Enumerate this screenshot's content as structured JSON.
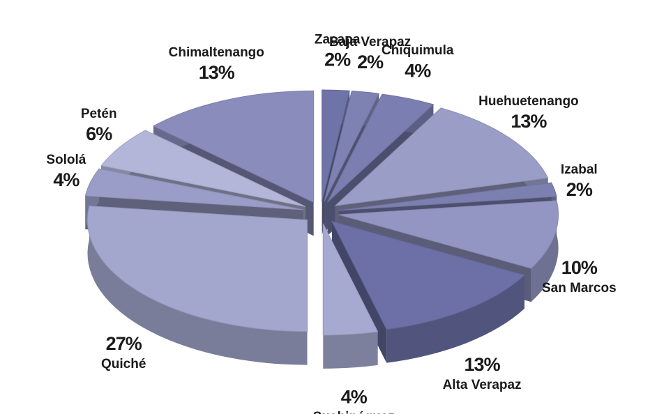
{
  "chart_data": {
    "type": "pie",
    "categories": [
      "Zacapa",
      "Baja Verapaz",
      "Chiquimula",
      "Huehuetenango",
      "Izabal",
      "San Marcos",
      "Alta Verapaz",
      "Suchipéquez",
      "Quiché",
      "Sololá",
      "Petén",
      "Chimaltenango"
    ],
    "values": [
      2,
      2,
      4,
      13,
      2,
      10,
      13,
      4,
      27,
      4,
      6,
      13
    ],
    "value_labels": [
      "2%",
      "2%",
      "4%",
      "13%",
      "2%",
      "10%",
      "13%",
      "4%",
      "27%",
      "4%",
      "6%",
      "13%"
    ],
    "colors": [
      "#6f74a8",
      "#7e82b2",
      "#7a7eb0",
      "#9a9dc6",
      "#7c80b1",
      "#9396c2",
      "#6c70a6",
      "#a7aad0",
      "#a3a6cd",
      "#9a9dc7",
      "#b3b6d8",
      "#8a8dbc"
    ]
  }
}
